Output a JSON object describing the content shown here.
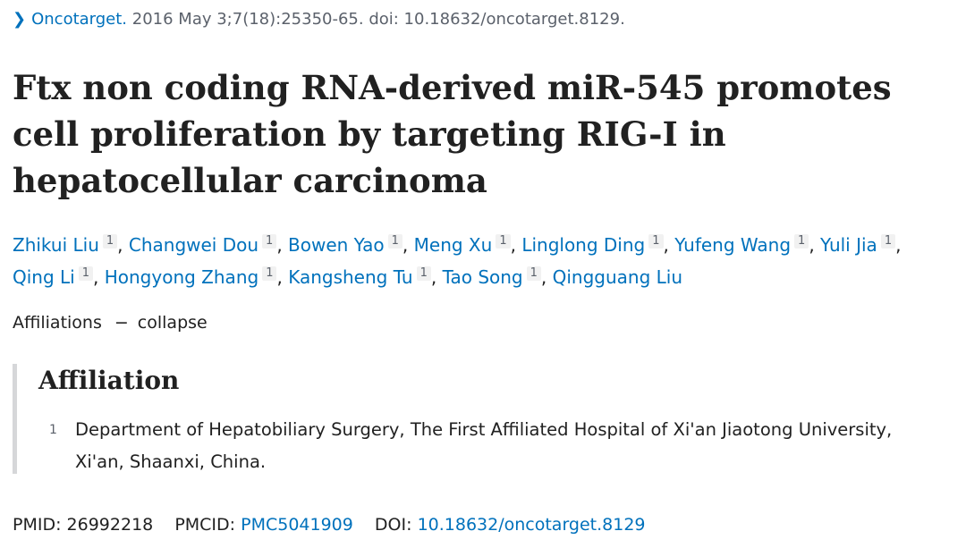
{
  "citation": {
    "chevron_icon": "chevron-right-icon",
    "journal": "Oncotarget.",
    "details": "2016 May 3;7(18):25350-65. doi: 10.18632/oncotarget.8129."
  },
  "article": {
    "title": "Ftx non coding RNA-derived miR-545 promotes cell proliferation by targeting RIG-I in hepatocellular carcinoma"
  },
  "authors": [
    {
      "name": "Zhikui Liu",
      "aff": "1"
    },
    {
      "name": "Changwei Dou",
      "aff": "1"
    },
    {
      "name": "Bowen Yao",
      "aff": "1"
    },
    {
      "name": "Meng Xu",
      "aff": "1"
    },
    {
      "name": "Linglong Ding",
      "aff": "1"
    },
    {
      "name": "Yufeng Wang",
      "aff": "1"
    },
    {
      "name": "Yuli Jia",
      "aff": "1"
    },
    {
      "name": "Qing Li",
      "aff": "1"
    },
    {
      "name": "Hongyong Zhang",
      "aff": "1"
    },
    {
      "name": "Kangsheng Tu",
      "aff": "1"
    },
    {
      "name": "Tao Song",
      "aff": "1"
    },
    {
      "name": "Qingguang Liu",
      "aff": ""
    }
  ],
  "affiliations_toggle": {
    "label": "Affiliations",
    "dash": "−",
    "action": "collapse"
  },
  "affiliations": {
    "heading": "Affiliation",
    "items": [
      {
        "number": "1",
        "text": "Department of Hepatobiliary Surgery, The First Affiliated Hospital of Xi'an Jiaotong University, Xi'an, Shaanxi, China."
      }
    ]
  },
  "identifiers": {
    "pmid_label": "PMID:",
    "pmid": "26992218",
    "pmcid_label": "PMCID:",
    "pmcid": "PMC5041909",
    "doi_label": "DOI:",
    "doi": "10.18632/oncotarget.8129"
  },
  "colors": {
    "link": "#0071bc",
    "muted": "#5b616b",
    "text": "#212121",
    "border": "#d6d7d9"
  }
}
